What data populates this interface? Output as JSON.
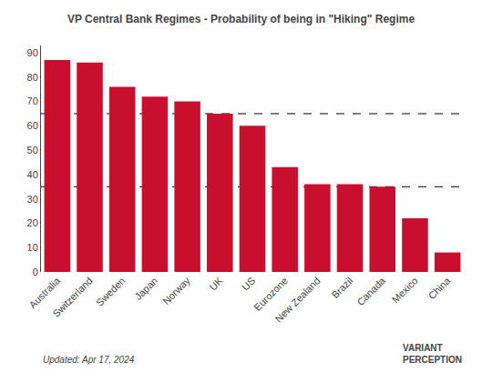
{
  "chart_data": {
    "type": "bar",
    "title": "VP Central Bank Regimes - Probability of being in \"Hiking\" Regime",
    "categories": [
      "Australia",
      "Switzerland",
      "Sweden",
      "Japan",
      "Norway",
      "UK",
      "US",
      "Eurozone",
      "New Zealand",
      "Brazil",
      "Canada",
      "Mexico",
      "China"
    ],
    "values": [
      87,
      86,
      76,
      72,
      70,
      65,
      60,
      43,
      36,
      36,
      35,
      22,
      8
    ],
    "color": "#C8102E",
    "ylim": [
      0,
      93
    ],
    "yticks": [
      0,
      10,
      20,
      30,
      40,
      50,
      60,
      70,
      80,
      90
    ],
    "hlines": [
      65,
      35
    ],
    "line_style": "dashed",
    "grid": false,
    "annotations": [
      "Updated: Apr 17, 2024",
      "VARIANT\nPERCEPTION"
    ]
  }
}
